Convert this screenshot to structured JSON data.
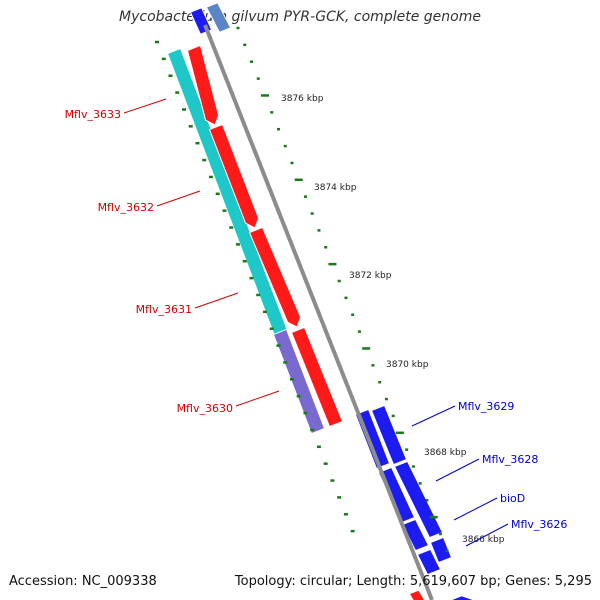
{
  "title": "Mycobacterium gilvum PYR-GCK, complete genome",
  "footer": {
    "accession": "Accession: NC_009338",
    "stats": "Topology: circular; Length: 5,619,607 bp; Genes: 5,295"
  },
  "colors": {
    "backbone": "#8c8c8c",
    "tick": "#1a7a1a",
    "forward_label": "#d40000",
    "reverse_label": "#0000cc",
    "forward_gene": "#ff1a1a",
    "reverse_gene": "#1c1cf0",
    "cds_cyan": "#1ec8c8",
    "cds_purple": "#7a6ad0"
  },
  "scale_ticks": [
    {
      "label": "3876 kbp",
      "pos_kbp": 3876
    },
    {
      "label": "3874 kbp",
      "pos_kbp": 3874
    },
    {
      "label": "3872 kbp",
      "pos_kbp": 3872
    },
    {
      "label": "3870 kbp",
      "pos_kbp": 3870
    },
    {
      "label": "3868 kbp",
      "pos_kbp": 3868
    },
    {
      "label": "3866 kbp",
      "pos_kbp": 3866
    }
  ],
  "genes": [
    {
      "name": "Mflv_3633",
      "strand": "forward"
    },
    {
      "name": "Mflv_3632",
      "strand": "forward"
    },
    {
      "name": "Mflv_3631",
      "strand": "forward"
    },
    {
      "name": "Mflv_3630",
      "strand": "forward"
    },
    {
      "name": "Mflv_3629",
      "strand": "reverse"
    },
    {
      "name": "Mflv_3628",
      "strand": "reverse"
    },
    {
      "name": "bioD",
      "strand": "reverse"
    },
    {
      "name": "Mflv_3626",
      "strand": "reverse"
    }
  ]
}
